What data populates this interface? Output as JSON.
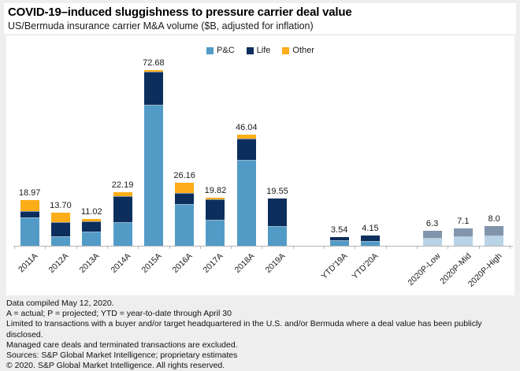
{
  "header": {
    "title": "COVID-19–induced sluggishness to pressure carrier deal value",
    "subtitle": "US/Bermuda insurance carrier M&A volume ($B, adjusted for inflation)"
  },
  "legend": {
    "items": [
      {
        "label": "P&C",
        "color": "#539bc7"
      },
      {
        "label": "Life",
        "color": "#0b2e5d"
      },
      {
        "label": "Other",
        "color": "#fcad18"
      }
    ]
  },
  "colors": {
    "page_background": "#eeeeee",
    "panel_background": "#ffffff",
    "axis": "#b5b5b5",
    "pc_actual": "#539bc7",
    "life_actual": "#0b2e5d",
    "other_actual": "#fcad18",
    "pc_projected": "#b9d3e6",
    "life_projected": "#8196ad"
  },
  "chart_data": {
    "type": "bar",
    "stacked": true,
    "title": "COVID-19–induced sluggishness to pressure carrier deal value",
    "subtitle": "US/Bermuda insurance carrier M&A volume ($B, adjusted for inflation)",
    "value_unit": "$B",
    "legend_position": "top-center",
    "grid": false,
    "y_axis_hidden": true,
    "ylim": [
      0,
      80
    ],
    "series_colors": {
      "P&C": "#539bc7",
      "Life": "#0b2e5d",
      "Other": "#fcad18",
      "P&C (projected)": "#b9d3e6",
      "Life (projected)": "#8196ad"
    },
    "categories": [
      "2011A",
      "2012A",
      "2013A",
      "2014A",
      "2015A",
      "2016A",
      "2017A",
      "2018A",
      "2019A",
      "YTD'19A",
      "YTD'20A",
      "2020P-Low",
      "2020P-Mid",
      "2020P-High"
    ],
    "bars": [
      {
        "category": "2011A",
        "total": 18.97,
        "label": "18.97",
        "segments": {
          "P&C": 11.7,
          "Life": 2.65,
          "Other": 4.62
        }
      },
      {
        "category": "2012A",
        "total": 13.7,
        "label": "13.70",
        "segments": {
          "P&C": 4.0,
          "Life": 5.7,
          "Other": 4.0
        }
      },
      {
        "category": "2013A",
        "total": 11.02,
        "label": "11.02",
        "segments": {
          "P&C": 5.92,
          "Life": 4.1,
          "Other": 1.0
        }
      },
      {
        "category": "2014A",
        "total": 22.19,
        "label": "22.19",
        "segments": {
          "P&C": 9.8,
          "Life": 10.8,
          "Other": 1.59
        }
      },
      {
        "category": "2015A",
        "total": 72.68,
        "label": "72.68",
        "segments": {
          "P&C": 58.2,
          "Life": 13.7,
          "Other": 0.78
        }
      },
      {
        "category": "2016A",
        "total": 26.16,
        "label": "26.16",
        "segments": {
          "P&C": 17.1,
          "Life": 4.8,
          "Other": 4.26
        }
      },
      {
        "category": "2017A",
        "total": 19.82,
        "label": "19.82",
        "segments": {
          "P&C": 10.6,
          "Life": 8.7,
          "Other": 0.52
        }
      },
      {
        "category": "2018A",
        "total": 46.04,
        "label": "46.04",
        "segments": {
          "P&C": 35.5,
          "Life": 8.9,
          "Other": 1.64
        }
      },
      {
        "category": "2019A",
        "total": 19.55,
        "label": "19.55",
        "segments": {
          "P&C": 8.3,
          "Life": 11.25
        }
      },
      {
        "category": "YTD'19A",
        "total": 3.54,
        "label": "3.54",
        "segments": {
          "P&C": 2.2,
          "Life": 1.34
        }
      },
      {
        "category": "YTD'20A",
        "total": 4.15,
        "label": "4.15",
        "segments": {
          "P&C": 2.08,
          "Life": 2.07
        }
      },
      {
        "category": "2020P-Low",
        "total": 6.3,
        "label": "6.3",
        "segments": {
          "P&C (projected)": 3.4,
          "Life (projected)": 2.9
        }
      },
      {
        "category": "2020P-Mid",
        "total": 7.1,
        "label": "7.1",
        "segments": {
          "P&C (projected)": 3.9,
          "Life (projected)": 3.2
        }
      },
      {
        "category": "2020P-High",
        "total": 8.0,
        "label": "8.0",
        "segments": {
          "P&C (projected)": 4.1,
          "Life (projected)": 3.9
        }
      }
    ],
    "gaps_after": [
      "2019A",
      "YTD'20A"
    ]
  },
  "footnotes": [
    "Data compiled May 12, 2020.",
    "A = actual; P = projected; YTD = year-to-date through April 30",
    "Limited to transactions with a buyer and/or target headquartered in the U.S. and/or Bermuda where a deal value has been publicly disclosed.",
    "Managed care deals and terminated transactions are excluded.",
    "Sources: S&P Global Market Intelligence; proprietary estimates",
    "© 2020. S&P Global Market Intelligence. All rights reserved."
  ]
}
